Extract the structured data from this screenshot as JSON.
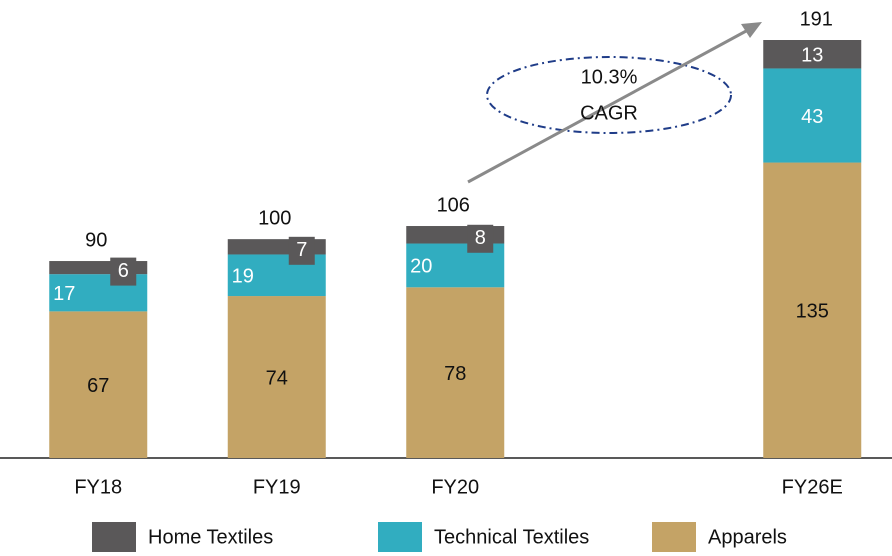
{
  "chart_data": {
    "type": "stacked_bar",
    "categories": [
      "FY18",
      "FY19",
      "FY20",
      null,
      "FY26E"
    ],
    "series": [
      {
        "name": "Apparels",
        "color": "#c4a366",
        "values": [
          67,
          74,
          78,
          null,
          135
        ]
      },
      {
        "name": "Technical Textiles",
        "color": "#31adc0",
        "values": [
          17,
          19,
          20,
          null,
          43
        ]
      },
      {
        "name": "Home Textiles",
        "color": "#5a5859",
        "values": [
          6,
          7,
          8,
          null,
          13
        ]
      }
    ],
    "totals": [
      90,
      100,
      106,
      null,
      191
    ],
    "annotation": [
      "10.3%",
      "CAGR"
    ],
    "legend_order": [
      2,
      1,
      0
    ]
  }
}
